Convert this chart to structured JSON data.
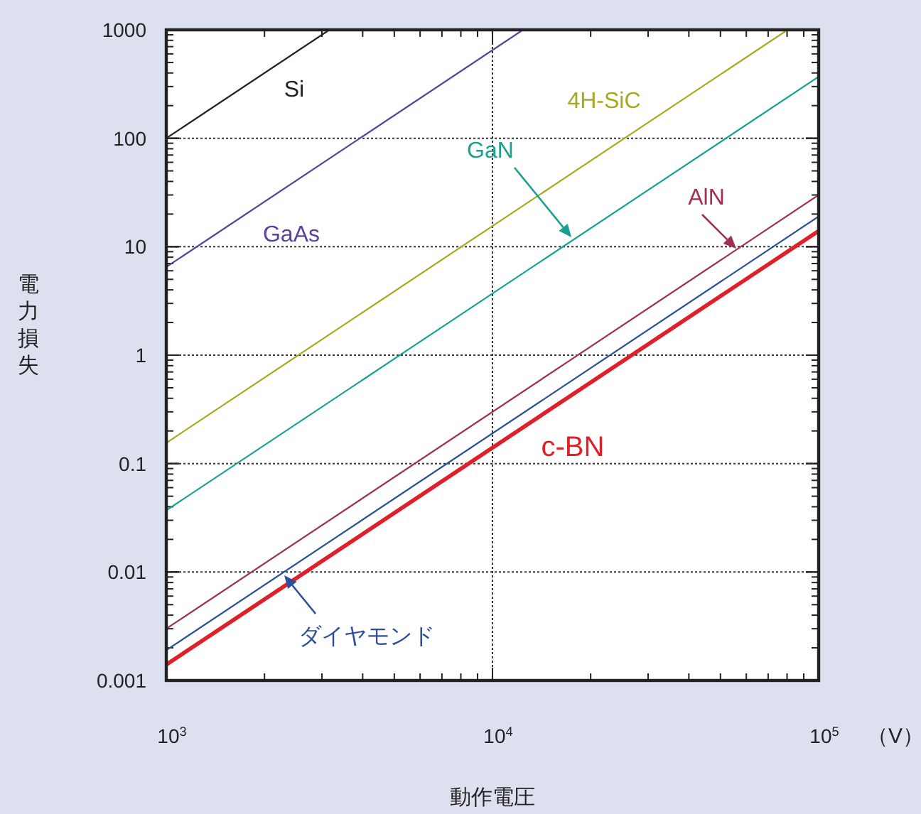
{
  "chart_data": {
    "type": "line",
    "xlabel": "動作電圧",
    "ylabel": "電力損失",
    "annotations": [
      "（V）"
    ],
    "log": "xy",
    "grid": true,
    "xlim": [
      1000,
      100000
    ],
    "ylim": [
      0.001,
      1000
    ],
    "xticks": [
      {
        "value": 1000,
        "label": "10$^{3}$"
      },
      {
        "value": 10000,
        "label": "10$^{4}$"
      },
      {
        "value": 100000,
        "label": "10$^{5}$"
      }
    ],
    "yticks": [
      {
        "value": 0.001,
        "label": "0.001"
      },
      {
        "value": 0.01,
        "label": "0.01"
      },
      {
        "value": 0.1,
        "label": "0.1"
      },
      {
        "value": 1,
        "label": "1"
      },
      {
        "value": 10,
        "label": "10"
      },
      {
        "value": 100,
        "label": "100"
      },
      {
        "value": 1000,
        "label": "1000"
      }
    ],
    "series": [
      {
        "name": "Si",
        "color": "#222222",
        "x": [
          1000,
          3162
        ],
        "values": [
          100,
          1000
        ]
      },
      {
        "name": "GaAs",
        "color": "#5b3fa0",
        "x": [
          1000,
          12400
        ],
        "values": [
          6.5,
          1000
        ]
      },
      {
        "name": "4H-SiC",
        "color": "#a8a820",
        "x": [
          1000,
          80300
        ],
        "values": [
          0.155,
          1000
        ]
      },
      {
        "name": "GaN",
        "color": "#1aa090",
        "x": [
          1000,
          100000
        ],
        "values": [
          0.037,
          370
        ]
      },
      {
        "name": "AlN",
        "color": "#a03050",
        "x": [
          1000,
          100000
        ],
        "values": [
          0.003,
          30
        ]
      },
      {
        "name": "ダイヤモンド",
        "color": "#2e4e9a",
        "x": [
          1000,
          100000
        ],
        "values": [
          0.0019,
          19
        ]
      },
      {
        "name": "c-BN",
        "color": "#e02028",
        "x": [
          1000,
          100000
        ],
        "values": [
          0.0014,
          14
        ]
      }
    ]
  }
}
